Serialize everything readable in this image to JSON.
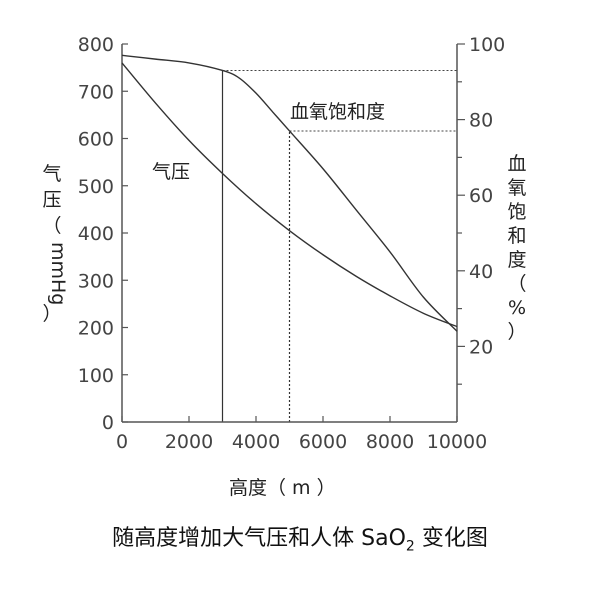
{
  "chart_data": {
    "type": "line",
    "caption": "随高度增加大气压和人体 SaO",
    "caption_sub": "2",
    "caption_tail": " 变化图",
    "xlabel": "高度（ m ）",
    "ylabel_left": [
      "气",
      "压",
      "（",
      "mmHg",
      "）"
    ],
    "ylabel_right": [
      "血",
      "氧",
      "饱",
      "和",
      "度",
      "（",
      "%",
      "）"
    ],
    "xlim": [
      0,
      10000
    ],
    "ylim_left": [
      0,
      800
    ],
    "ylim_right": [
      0,
      100
    ],
    "x_ticks": [
      "0",
      "2000",
      "4000",
      "6000",
      "8000",
      "10000"
    ],
    "x_tick_values": [
      0,
      2000,
      4000,
      6000,
      8000,
      10000
    ],
    "y_left_ticks": [
      "0",
      "100",
      "200",
      "300",
      "400",
      "500",
      "600",
      "700",
      "800"
    ],
    "y_left_tick_values": [
      0,
      100,
      200,
      300,
      400,
      500,
      600,
      700,
      800
    ],
    "y_right_ticks": [
      "20",
      "40",
      "60",
      "80",
      "100"
    ],
    "y_right_tick_values": [
      20,
      40,
      60,
      80,
      100
    ],
    "series": [
      {
        "name": "气压",
        "axis": "left",
        "x": [
          0,
          1000,
          2000,
          3000,
          4000,
          5000,
          6000,
          7000,
          8000,
          9000,
          10000
        ],
        "values": [
          760,
          675,
          596,
          526,
          462,
          405,
          354,
          308,
          267,
          230,
          202
        ]
      },
      {
        "name": "血氧饱和度",
        "axis": "right",
        "x": [
          0,
          1000,
          2000,
          3000,
          3500,
          4000,
          4500,
          5000,
          6000,
          7000,
          8000,
          9000,
          10000
        ],
        "values": [
          97,
          96,
          95,
          93,
          91,
          87,
          82,
          77,
          67,
          56,
          45,
          33,
          24
        ]
      }
    ],
    "reference_lines": [
      {
        "x": 3000,
        "y_right": 93
      },
      {
        "x": 5000,
        "y_right": 77
      }
    ]
  }
}
